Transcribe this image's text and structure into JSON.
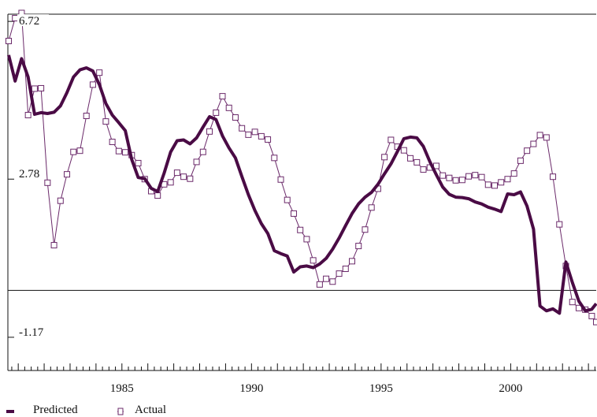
{
  "chart_data": {
    "type": "line",
    "title": "",
    "xlabel": "",
    "ylabel": "",
    "xlim": [
      1980.6,
      2003.3
    ],
    "ylim": [
      -2.0,
      6.9
    ],
    "grid": false,
    "zero_line": 0,
    "legend_position": "bottom-left",
    "x_ticks": [
      1985,
      1990,
      1995,
      2000
    ],
    "x_tick_labels": [
      "1985",
      "1990",
      "1995",
      "2000"
    ],
    "y_ticks": [
      6.72,
      2.78,
      -1.17
    ],
    "y_tick_labels": [
      "6.72",
      "2.78",
      "-1.17"
    ],
    "colors": {
      "line": "#4a0b45",
      "marker": "#6b2a6a",
      "axis": "#111111"
    },
    "series": [
      {
        "name": "Predicted",
        "style": "thick-line",
        "x": [
          1980.63,
          1980.88,
          1981.13,
          1981.38,
          1981.63,
          1981.88,
          1982.13,
          1982.38,
          1982.63,
          1982.88,
          1983.13,
          1983.38,
          1983.63,
          1983.88,
          1984.13,
          1984.38,
          1984.63,
          1984.88,
          1985.13,
          1985.38,
          1985.63,
          1985.88,
          1986.13,
          1986.38,
          1986.63,
          1986.88,
          1987.13,
          1987.38,
          1987.63,
          1987.88,
          1988.13,
          1988.38,
          1988.63,
          1988.88,
          1989.13,
          1989.38,
          1989.63,
          1989.88,
          1990.13,
          1990.38,
          1990.63,
          1990.88,
          1991.13,
          1991.38,
          1991.63,
          1991.88,
          1992.13,
          1992.38,
          1992.63,
          1992.88,
          1993.13,
          1993.38,
          1993.63,
          1993.88,
          1994.13,
          1994.38,
          1994.63,
          1994.88,
          1995.13,
          1995.38,
          1995.63,
          1995.88,
          1996.13,
          1996.38,
          1996.63,
          1996.88,
          1997.13,
          1997.38,
          1997.63,
          1997.88,
          1998.13,
          1998.38,
          1998.63,
          1998.88,
          1999.13,
          1999.38,
          1999.63,
          1999.88,
          2000.13,
          2000.38,
          2000.63,
          2000.88,
          2001.13,
          2001.38,
          2001.63,
          2001.88,
          2002.13,
          2002.38,
          2002.63,
          2002.88,
          2003.13,
          2003.3
        ],
        "values": [
          5.88,
          5.23,
          5.79,
          5.33,
          4.4,
          4.44,
          4.42,
          4.45,
          4.61,
          4.94,
          5.33,
          5.51,
          5.56,
          5.48,
          5.14,
          4.67,
          4.38,
          4.19,
          3.99,
          3.27,
          2.82,
          2.79,
          2.55,
          2.47,
          2.93,
          3.46,
          3.74,
          3.76,
          3.66,
          3.81,
          4.08,
          4.34,
          4.27,
          3.86,
          3.56,
          3.31,
          2.84,
          2.39,
          2.0,
          1.67,
          1.42,
          0.99,
          0.92,
          0.86,
          0.46,
          0.59,
          0.61,
          0.57,
          0.66,
          0.8,
          1.03,
          1.31,
          1.62,
          1.92,
          2.16,
          2.33,
          2.45,
          2.65,
          2.91,
          3.16,
          3.47,
          3.79,
          3.83,
          3.81,
          3.6,
          3.22,
          2.89,
          2.58,
          2.4,
          2.33,
          2.32,
          2.29,
          2.21,
          2.16,
          2.08,
          2.03,
          1.97,
          2.41,
          2.39,
          2.46,
          2.11,
          1.53,
          -0.39,
          -0.51,
          -0.46,
          -0.57,
          0.71,
          0.2,
          -0.27,
          -0.51,
          -0.47,
          -0.33
        ]
      },
      {
        "name": "Actual",
        "style": "thin-line-square-markers",
        "x": [
          1980.63,
          1980.88,
          1981.13,
          1981.38,
          1981.63,
          1981.88,
          1982.13,
          1982.38,
          1982.63,
          1982.88,
          1983.13,
          1983.38,
          1983.63,
          1983.88,
          1984.13,
          1984.38,
          1984.63,
          1984.88,
          1985.13,
          1985.38,
          1985.63,
          1985.88,
          1986.13,
          1986.38,
          1986.63,
          1986.88,
          1987.13,
          1987.38,
          1987.63,
          1987.88,
          1988.13,
          1988.38,
          1988.63,
          1988.88,
          1989.13,
          1989.38,
          1989.63,
          1989.88,
          1990.13,
          1990.38,
          1990.63,
          1990.88,
          1991.13,
          1991.38,
          1991.63,
          1991.88,
          1992.13,
          1992.38,
          1992.63,
          1992.88,
          1993.13,
          1993.38,
          1993.63,
          1993.88,
          1994.13,
          1994.38,
          1994.63,
          1994.88,
          1995.13,
          1995.38,
          1995.63,
          1995.88,
          1996.13,
          1996.38,
          1996.63,
          1996.88,
          1997.13,
          1997.38,
          1997.63,
          1997.88,
          1998.13,
          1998.38,
          1998.63,
          1998.88,
          1999.13,
          1999.38,
          1999.63,
          1999.88,
          2000.13,
          2000.38,
          2000.63,
          2000.88,
          2001.13,
          2001.38,
          2001.63,
          2001.88,
          2002.13,
          2002.38,
          2002.63,
          2002.88,
          2003.13,
          2003.3
        ],
        "values": [
          6.23,
          6.8,
          6.93,
          4.38,
          5.04,
          5.05,
          2.69,
          1.13,
          2.24,
          2.9,
          3.46,
          3.49,
          4.36,
          5.14,
          5.44,
          4.22,
          3.71,
          3.48,
          3.45,
          3.38,
          3.18,
          2.78,
          2.48,
          2.37,
          2.65,
          2.7,
          2.94,
          2.84,
          2.79,
          3.21,
          3.46,
          3.97,
          4.44,
          4.85,
          4.56,
          4.32,
          4.05,
          3.89,
          3.96,
          3.85,
          3.77,
          3.31,
          2.77,
          2.26,
          1.92,
          1.51,
          1.28,
          0.75,
          0.15,
          0.29,
          0.22,
          0.42,
          0.54,
          0.73,
          1.11,
          1.52,
          2.07,
          2.54,
          3.33,
          3.76,
          3.59,
          3.5,
          3.3,
          3.2,
          3.02,
          3.07,
          3.11,
          2.87,
          2.81,
          2.75,
          2.76,
          2.85,
          2.88,
          2.83,
          2.64,
          2.62,
          2.7,
          2.78,
          2.92,
          3.24,
          3.49,
          3.66,
          3.88,
          3.82,
          2.84,
          1.65,
          0.61,
          -0.29,
          -0.44,
          -0.48,
          -0.64,
          -0.79
        ]
      }
    ]
  },
  "legend": {
    "items": [
      {
        "label": "Predicted"
      },
      {
        "label": "Actual"
      }
    ]
  }
}
